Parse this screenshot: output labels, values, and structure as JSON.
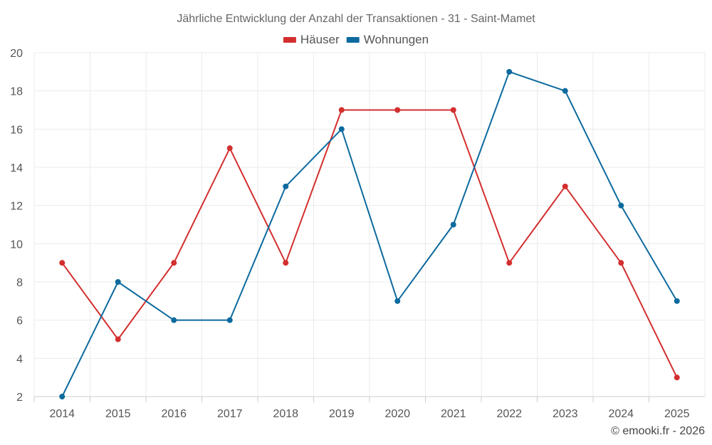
{
  "chart_data": {
    "type": "line",
    "title": "Jährliche Entwicklung der Anzahl der Transaktionen - 31 - Saint-Mamet",
    "categories": [
      "2014",
      "2015",
      "2016",
      "2017",
      "2018",
      "2019",
      "2020",
      "2021",
      "2022",
      "2023",
      "2024",
      "2025"
    ],
    "series": [
      {
        "name": "Häuser",
        "color": "#d32f2f",
        "values": [
          9,
          5,
          9,
          15,
          9,
          17,
          17,
          17,
          9,
          13,
          9,
          3
        ]
      },
      {
        "name": "Wohnungen",
        "color": "#0d6a9e",
        "values": [
          2,
          8,
          6,
          6,
          13,
          16,
          7,
          11,
          19,
          18,
          12,
          7
        ]
      }
    ],
    "ylim": [
      2,
      20
    ],
    "yticks": [
      2,
      4,
      6,
      8,
      10,
      12,
      14,
      16,
      18,
      20
    ],
    "grid": true,
    "legend_position": "top-center",
    "credit": "© emooki.fr - 2026"
  }
}
